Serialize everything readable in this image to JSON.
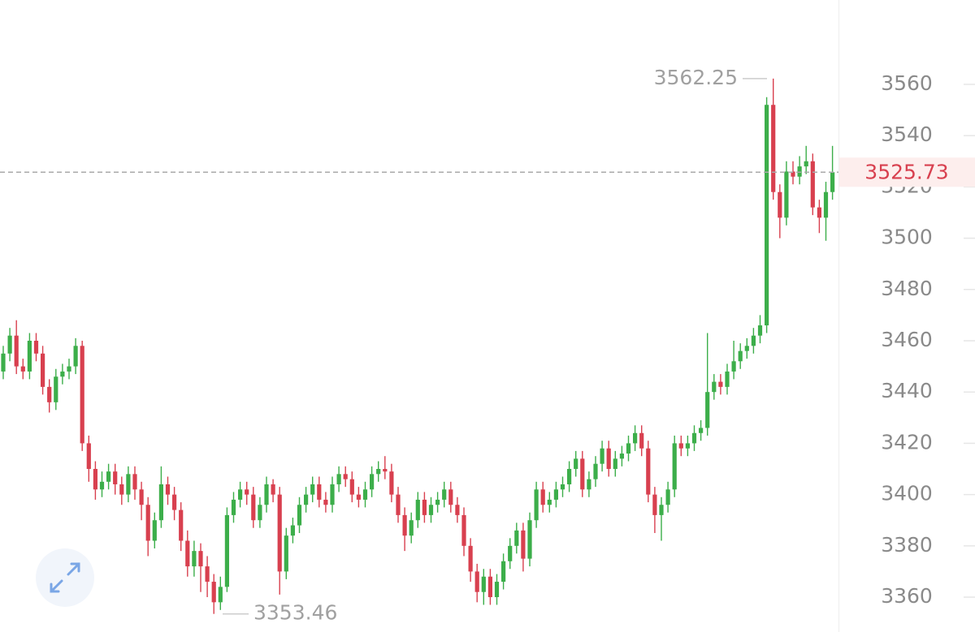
{
  "chart_data": {
    "type": "candlestick",
    "ylim": [
      3346.4,
      3592.9
    ],
    "yticks": [
      3360,
      3380,
      3400,
      3420,
      3440,
      3460,
      3480,
      3500,
      3520,
      3540,
      3560
    ],
    "up_color": "#3cae4a",
    "down_color": "#d8404f",
    "last_price": 3525.73,
    "high_annotation": 3562.25,
    "low_annotation": 3353.46,
    "open": [
      3448,
      3455,
      3462,
      3450,
      3448,
      3460,
      3455,
      3442,
      3436,
      3446,
      3448,
      3450,
      3458,
      3420,
      3410,
      3402,
      3405,
      3409,
      3404,
      3400,
      3408,
      3402,
      3396,
      3382,
      3390,
      3404,
      3400,
      3394,
      3382,
      3372,
      3378,
      3372,
      3366,
      3358,
      3364,
      3392,
      3398,
      3402,
      3400,
      3390,
      3396,
      3404,
      3400,
      3370,
      3384,
      3388,
      3396,
      3400,
      3404,
      3398,
      3396,
      3404,
      3408,
      3406,
      3400,
      3398,
      3402,
      3408,
      3410,
      3409,
      3400,
      3392,
      3384,
      3390,
      3398,
      3392,
      3396,
      3398,
      3402,
      3396,
      3392,
      3380,
      3370,
      3362,
      3368,
      3360,
      3366,
      3374,
      3380,
      3386,
      3375,
      3390,
      3402,
      3396,
      3398,
      3402,
      3404,
      3410,
      3414,
      3402,
      3406,
      3412,
      3418,
      3410,
      3414,
      3416,
      3420,
      3424,
      3418,
      3400,
      3392,
      3396,
      3402,
      3420,
      3418,
      3420,
      3424,
      3426,
      3440,
      3444,
      3442,
      3448,
      3452,
      3456,
      3458,
      3462,
      3466,
      3552,
      3518,
      3508,
      3526,
      3524,
      3528,
      3530,
      3512,
      3508,
      3518
    ],
    "high": [
      3458,
      3465,
      3468,
      3453,
      3463,
      3463,
      3458,
      3445,
      3449,
      3451,
      3453,
      3461,
      3460,
      3423,
      3413,
      3409,
      3412,
      3412,
      3407,
      3411,
      3411,
      3405,
      3399,
      3393,
      3411,
      3407,
      3403,
      3397,
      3386,
      3382,
      3381,
      3376,
      3369,
      3368,
      3395,
      3401,
      3405,
      3405,
      3403,
      3399,
      3407,
      3406,
      3403,
      3387,
      3391,
      3399,
      3403,
      3407,
      3407,
      3401,
      3407,
      3411,
      3411,
      3409,
      3403,
      3405,
      3411,
      3413,
      3415,
      3412,
      3403,
      3395,
      3393,
      3401,
      3401,
      3399,
      3401,
      3405,
      3405,
      3399,
      3395,
      3383,
      3373,
      3371,
      3371,
      3369,
      3377,
      3383,
      3389,
      3389,
      3393,
      3405,
      3405,
      3401,
      3405,
      3407,
      3413,
      3417,
      3417,
      3409,
      3415,
      3421,
      3421,
      3417,
      3419,
      3423,
      3427,
      3427,
      3421,
      3403,
      3399,
      3405,
      3423,
      3423,
      3423,
      3427,
      3429,
      3463,
      3447,
      3447,
      3451,
      3460,
      3459,
      3461,
      3465,
      3470,
      3555,
      3562.25,
      3521,
      3530,
      3530,
      3532,
      3536,
      3533,
      3515,
      3522,
      3536
    ],
    "low": [
      3445,
      3452,
      3447,
      3445,
      3445,
      3452,
      3439,
      3432,
      3433,
      3443,
      3445,
      3447,
      3417,
      3405,
      3398,
      3399,
      3402,
      3400,
      3396,
      3397,
      3398,
      3390,
      3376,
      3379,
      3387,
      3396,
      3390,
      3378,
      3368,
      3368,
      3362,
      3360,
      3353.46,
      3355,
      3362,
      3389,
      3395,
      3396,
      3387,
      3387,
      3393,
      3397,
      3361,
      3367,
      3381,
      3385,
      3393,
      3397,
      3395,
      3393,
      3393,
      3401,
      3403,
      3397,
      3395,
      3395,
      3399,
      3405,
      3406,
      3397,
      3389,
      3378,
      3381,
      3387,
      3389,
      3389,
      3393,
      3395,
      3393,
      3389,
      3376,
      3366,
      3358,
      3357,
      3357,
      3357,
      3363,
      3371,
      3377,
      3370,
      3372,
      3387,
      3393,
      3393,
      3395,
      3399,
      3401,
      3407,
      3399,
      3399,
      3403,
      3409,
      3407,
      3407,
      3411,
      3413,
      3417,
      3415,
      3397,
      3385,
      3382,
      3393,
      3399,
      3415,
      3415,
      3417,
      3421,
      3423,
      3437,
      3439,
      3439,
      3445,
      3449,
      3453,
      3455,
      3459,
      3463,
      3515,
      3500,
      3505,
      3521,
      3521,
      3525,
      3509,
      3502,
      3499,
      3515
    ],
    "close": [
      3455,
      3462,
      3450,
      3448,
      3460,
      3455,
      3442,
      3436,
      3446,
      3448,
      3450,
      3458,
      3420,
      3410,
      3402,
      3405,
      3409,
      3404,
      3400,
      3408,
      3402,
      3396,
      3382,
      3390,
      3404,
      3400,
      3394,
      3382,
      3372,
      3378,
      3372,
      3366,
      3358,
      3364,
      3392,
      3398,
      3402,
      3400,
      3390,
      3396,
      3404,
      3400,
      3370,
      3384,
      3388,
      3396,
      3400,
      3404,
      3398,
      3396,
      3404,
      3408,
      3406,
      3400,
      3398,
      3402,
      3408,
      3410,
      3409,
      3400,
      3392,
      3384,
      3390,
      3398,
      3392,
      3396,
      3398,
      3402,
      3396,
      3392,
      3380,
      3370,
      3362,
      3368,
      3360,
      3366,
      3374,
      3380,
      3386,
      3375,
      3390,
      3402,
      3396,
      3398,
      3402,
      3404,
      3410,
      3414,
      3402,
      3406,
      3412,
      3418,
      3410,
      3414,
      3416,
      3420,
      3424,
      3418,
      3400,
      3392,
      3396,
      3402,
      3420,
      3418,
      3420,
      3424,
      3426,
      3440,
      3444,
      3442,
      3448,
      3452,
      3456,
      3458,
      3462,
      3466,
      3552,
      3518,
      3508,
      3526,
      3524,
      3528,
      3530,
      3512,
      3508,
      3518,
      3525.73
    ]
  }
}
